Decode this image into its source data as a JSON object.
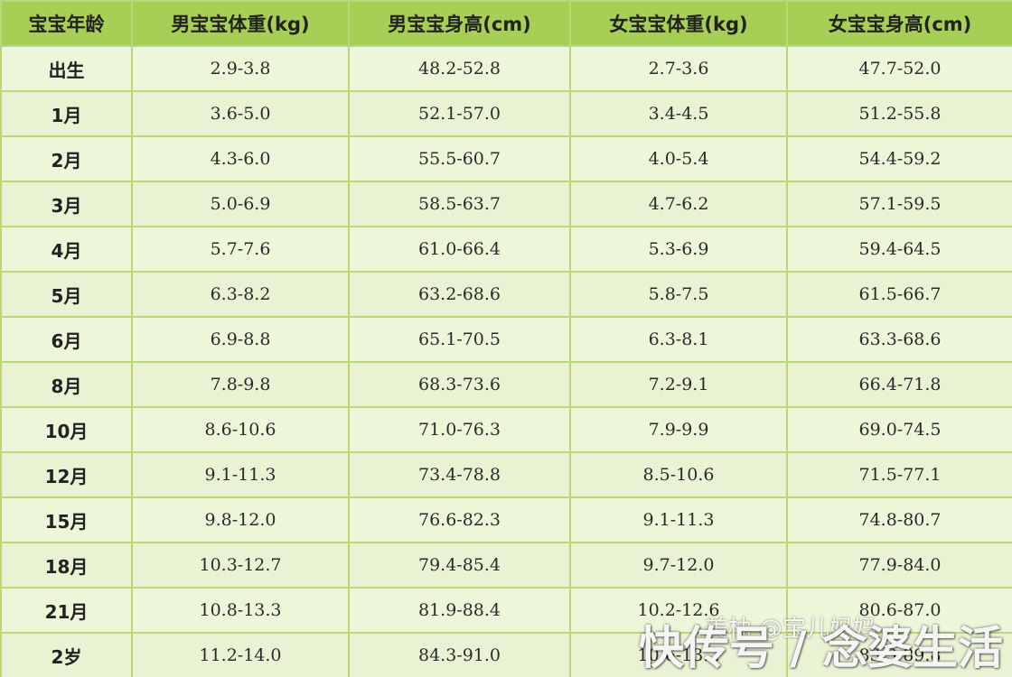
{
  "table": {
    "headers": [
      "宝宝年龄",
      "男宝宝体重(kg)",
      "男宝宝身高(cm)",
      "女宝宝体重(kg)",
      "女宝宝身高(cm)"
    ],
    "rows": [
      [
        "出生",
        "2.9-3.8",
        "48.2-52.8",
        "2.7-3.6",
        "47.7-52.0"
      ],
      [
        "1月",
        "3.6-5.0",
        "52.1-57.0",
        "3.4-4.5",
        "51.2-55.8"
      ],
      [
        "2月",
        "4.3-6.0",
        "55.5-60.7",
        "4.0-5.4",
        "54.4-59.2"
      ],
      [
        "3月",
        "5.0-6.9",
        "58.5-63.7",
        "4.7-6.2",
        "57.1-59.5"
      ],
      [
        "4月",
        "5.7-7.6",
        "61.0-66.4",
        "5.3-6.9",
        "59.4-64.5"
      ],
      [
        "5月",
        "6.3-8.2",
        "63.2-68.6",
        "5.8-7.5",
        "61.5-66.7"
      ],
      [
        "6月",
        "6.9-8.8",
        "65.1-70.5",
        "6.3-8.1",
        "63.3-68.6"
      ],
      [
        "8月",
        "7.8-9.8",
        "68.3-73.6",
        "7.2-9.1",
        "66.4-71.8"
      ],
      [
        "10月",
        "8.6-10.6",
        "71.0-76.3",
        "7.9-9.9",
        "69.0-74.5"
      ],
      [
        "12月",
        "9.1-11.3",
        "73.4-78.8",
        "8.5-10.6",
        "71.5-77.1"
      ],
      [
        "15月",
        "9.8-12.0",
        "76.6-82.3",
        "9.1-11.3",
        "74.8-80.7"
      ],
      [
        "18月",
        "10.3-12.7",
        "79.4-85.4",
        "9.7-12.0",
        "77.9-84.0"
      ],
      [
        "21月",
        "10.8-13.3",
        "81.9-88.4",
        "10.2-12.6",
        "80.6-87.0"
      ],
      [
        "2岁",
        "11.2-14.0",
        "84.3-91.0",
        "10.6-13.2",
        "83.3-89.8"
      ]
    ]
  },
  "watermark": {
    "author": "美柚 @宝儿妈妈",
    "channel": "快传号 / 念婆生活"
  }
}
